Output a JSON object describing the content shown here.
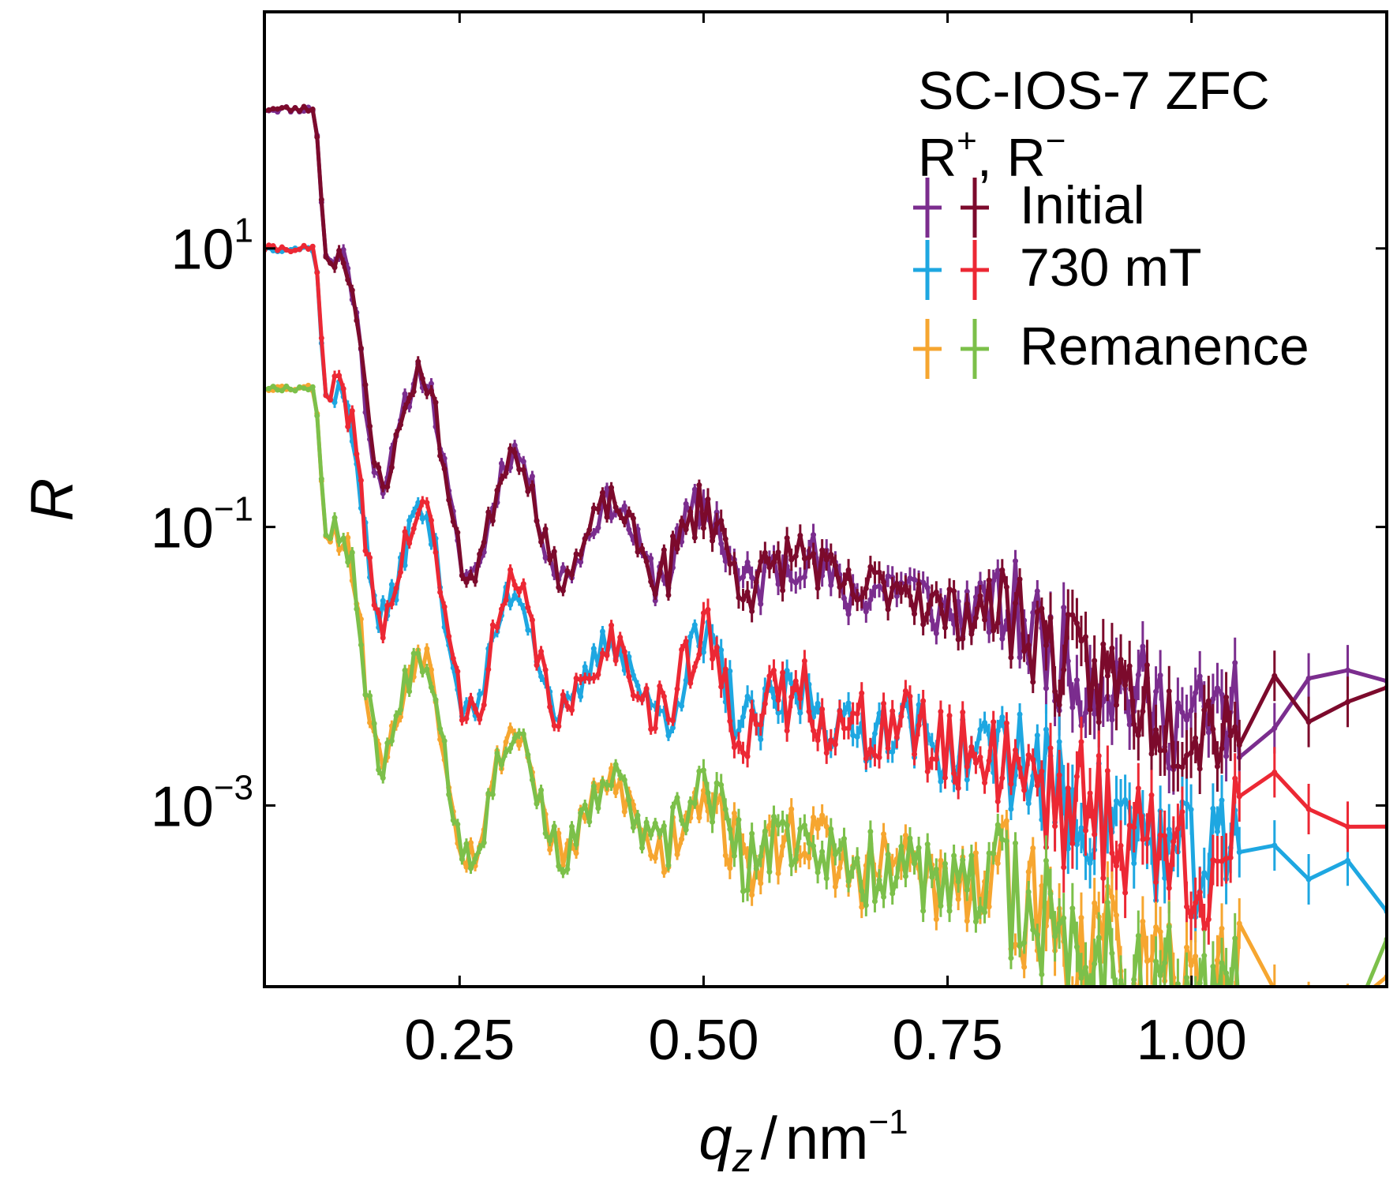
{
  "chart_data": {
    "type": "line",
    "xlabel": "q_z / nm⁻¹",
    "xlabel_var": "q",
    "xlabel_sub": "z",
    "xlabel_unit": "nm",
    "xlabel_unit_exp": "−1",
    "ylabel": "R",
    "xlim": [
      0.05,
      1.2
    ],
    "ylim": [
      5e-05,
      500
    ],
    "yscale": "log",
    "x_ticks": [
      0.25,
      0.5,
      0.75,
      1.0
    ],
    "x_tick_labels": [
      "0.25",
      "0.50",
      "0.75",
      "1.00"
    ],
    "y_ticks": [
      10,
      0.1,
      0.001
    ],
    "y_tick_labels": [
      {
        "base": "10",
        "exp": "1"
      },
      {
        "base": "10",
        "exp": "−1"
      },
      {
        "base": "10",
        "exp": "−3"
      }
    ],
    "legend": {
      "title_line1": "SC-IOS-7 ZFC",
      "title_line2": "R⁺, R⁻",
      "title_line2_parts": {
        "a": "R",
        "a_sup": "+",
        "sep": ", ",
        "b": "R",
        "b_sup": "−"
      },
      "placement": "top-right",
      "entries": [
        {
          "label": "Initial",
          "colors": [
            "#7b2d8e",
            "#7c0a2c"
          ]
        },
        {
          "label": "730 mT",
          "colors": [
            "#1ea7e1",
            "#ec2834"
          ]
        },
        {
          "label": "Remanence",
          "colors": [
            "#f6a630",
            "#7cc04a"
          ]
        }
      ]
    },
    "series": [
      {
        "group": "Initial",
        "polarization": "R+",
        "color": "#7b2d8e",
        "scale": 100,
        "seed": 11,
        "noise": 1.0
      },
      {
        "group": "Initial",
        "polarization": "R-",
        "color": "#7c0a2c",
        "scale": 100,
        "seed": 23,
        "noise": 1.0
      },
      {
        "group": "730 mT",
        "polarization": "R+",
        "color": "#1ea7e1",
        "scale": 10,
        "seed": 37,
        "noise": 1.1
      },
      {
        "group": "730 mT",
        "polarization": "R-",
        "color": "#ec2834",
        "scale": 10,
        "seed": 41,
        "noise": 1.4
      },
      {
        "group": "Remanence",
        "polarization": "R+",
        "color": "#f6a630",
        "scale": 1,
        "seed": 53,
        "noise": 1.3
      },
      {
        "group": "Remanence",
        "polarization": "R-",
        "color": "#7cc04a",
        "scale": 1,
        "seed": 67,
        "noise": 1.3
      }
    ],
    "base_curve_points": [
      [
        0.05,
        1.0
      ],
      [
        0.1,
        1.0
      ],
      [
        0.115,
        0.08
      ],
      [
        0.13,
        0.09
      ],
      [
        0.17,
        0.0022
      ],
      [
        0.21,
        0.013
      ],
      [
        0.26,
        0.00045
      ],
      [
        0.305,
        0.0035
      ],
      [
        0.355,
        0.00045
      ],
      [
        0.405,
        0.0015
      ],
      [
        0.455,
        0.00045
      ],
      [
        0.5,
        0.0014
      ],
      [
        0.545,
        0.00038
      ],
      [
        0.6,
        0.00065
      ],
      [
        0.65,
        0.00033
      ],
      [
        0.7,
        0.0004
      ],
      [
        0.75,
        0.00024
      ],
      [
        0.8,
        0.00026
      ],
      [
        0.9,
        8.5e-05
      ],
      [
        1.0,
        4e-05
      ],
      [
        1.1,
        6e-05
      ],
      [
        1.2,
        4e-05
      ]
    ],
    "grid": false
  }
}
